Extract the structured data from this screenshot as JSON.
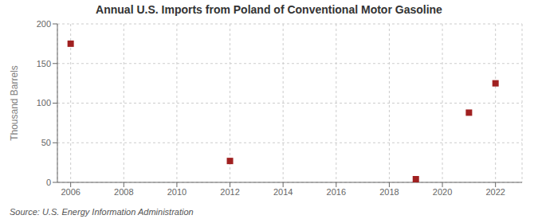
{
  "chart_data": {
    "type": "scatter",
    "title": "Annual U.S. Imports from Poland of Conventional Motor Gasoline",
    "ylabel": "Thousand Barrels",
    "annotations": [
      "Source: U.S. Energy Information Administration"
    ],
    "x": [
      2006,
      2012,
      2019,
      2021,
      2022
    ],
    "values": [
      175,
      27,
      4,
      88,
      125
    ],
    "xlim": [
      2005.5,
      2023.0
    ],
    "ylim": [
      0,
      200
    ],
    "xticks": [
      2006,
      2008,
      2010,
      2012,
      2014,
      2016,
      2018,
      2020,
      2022
    ],
    "yticks": [
      0,
      50,
      100,
      150,
      200
    ],
    "color": "#a02020",
    "marker": "square",
    "grid": true
  }
}
